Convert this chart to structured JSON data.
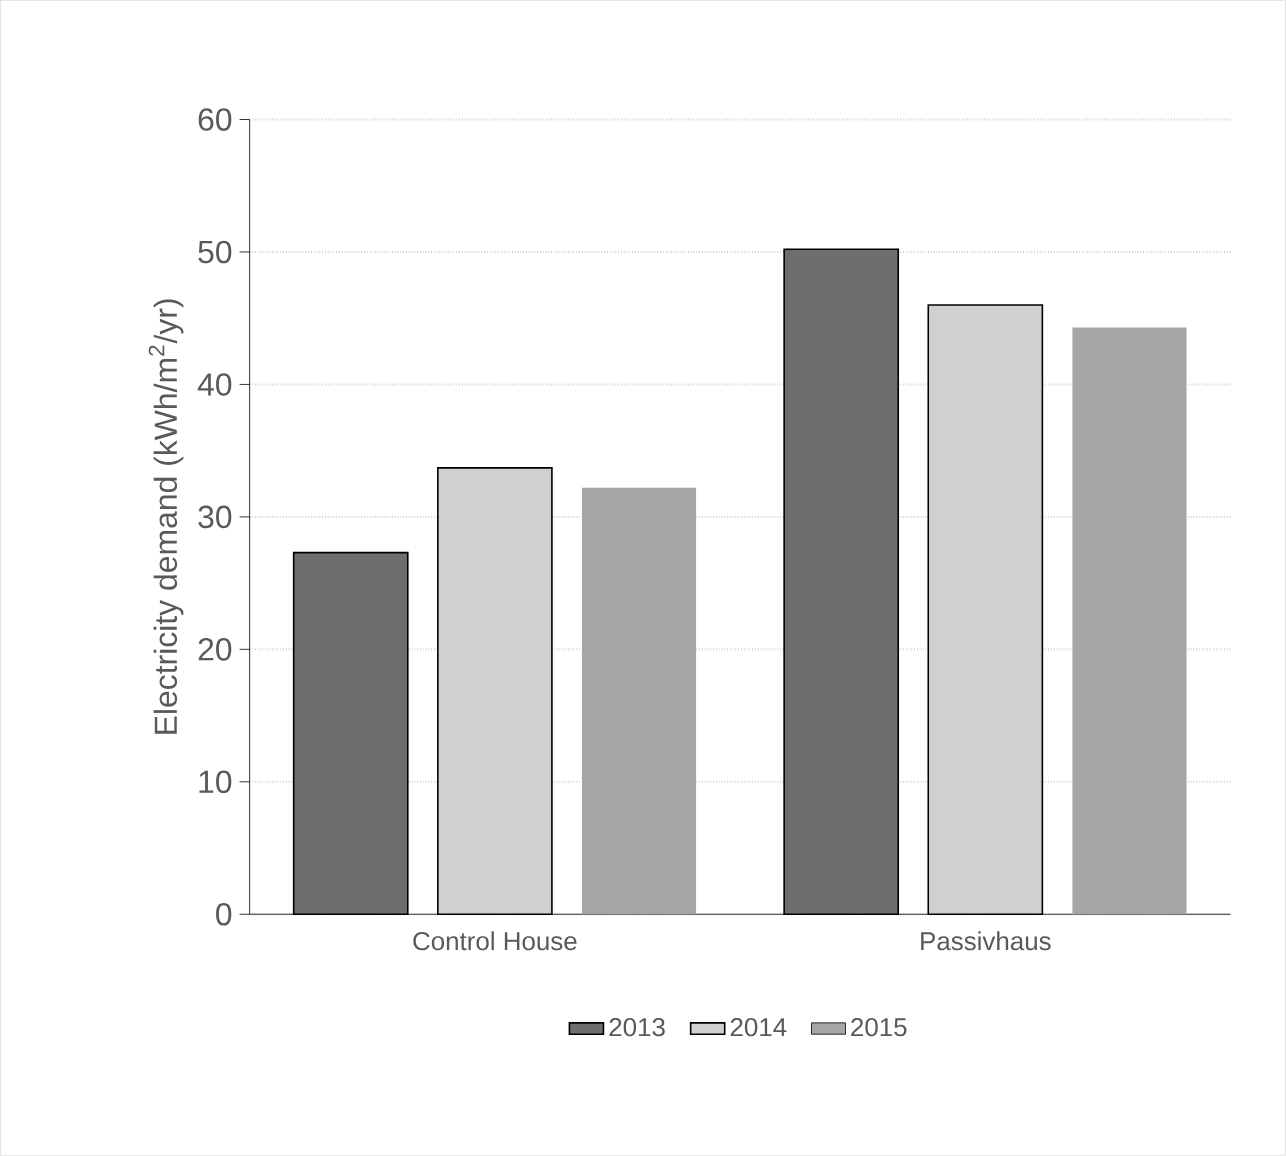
{
  "chart_data": {
    "type": "bar",
    "ylabel": "Electricity demand (kWh/m$^{2}$/yr)",
    "categories": [
      "Control House",
      "Passivhaus"
    ],
    "series": [
      {
        "name": "2013",
        "color": "#6e6e6e",
        "values": [
          27.3,
          50.2
        ]
      },
      {
        "name": "2014",
        "color": "#d0d0d0",
        "values": [
          33.7,
          46.0
        ]
      },
      {
        "name": "2015",
        "color": "#a5a5a5",
        "values": [
          32.2,
          44.3
        ]
      }
    ],
    "ylim": [
      0,
      60
    ],
    "yticks": [
      0,
      10,
      20,
      30,
      40,
      50,
      60
    ],
    "grid": "y",
    "legend": "bottom"
  }
}
